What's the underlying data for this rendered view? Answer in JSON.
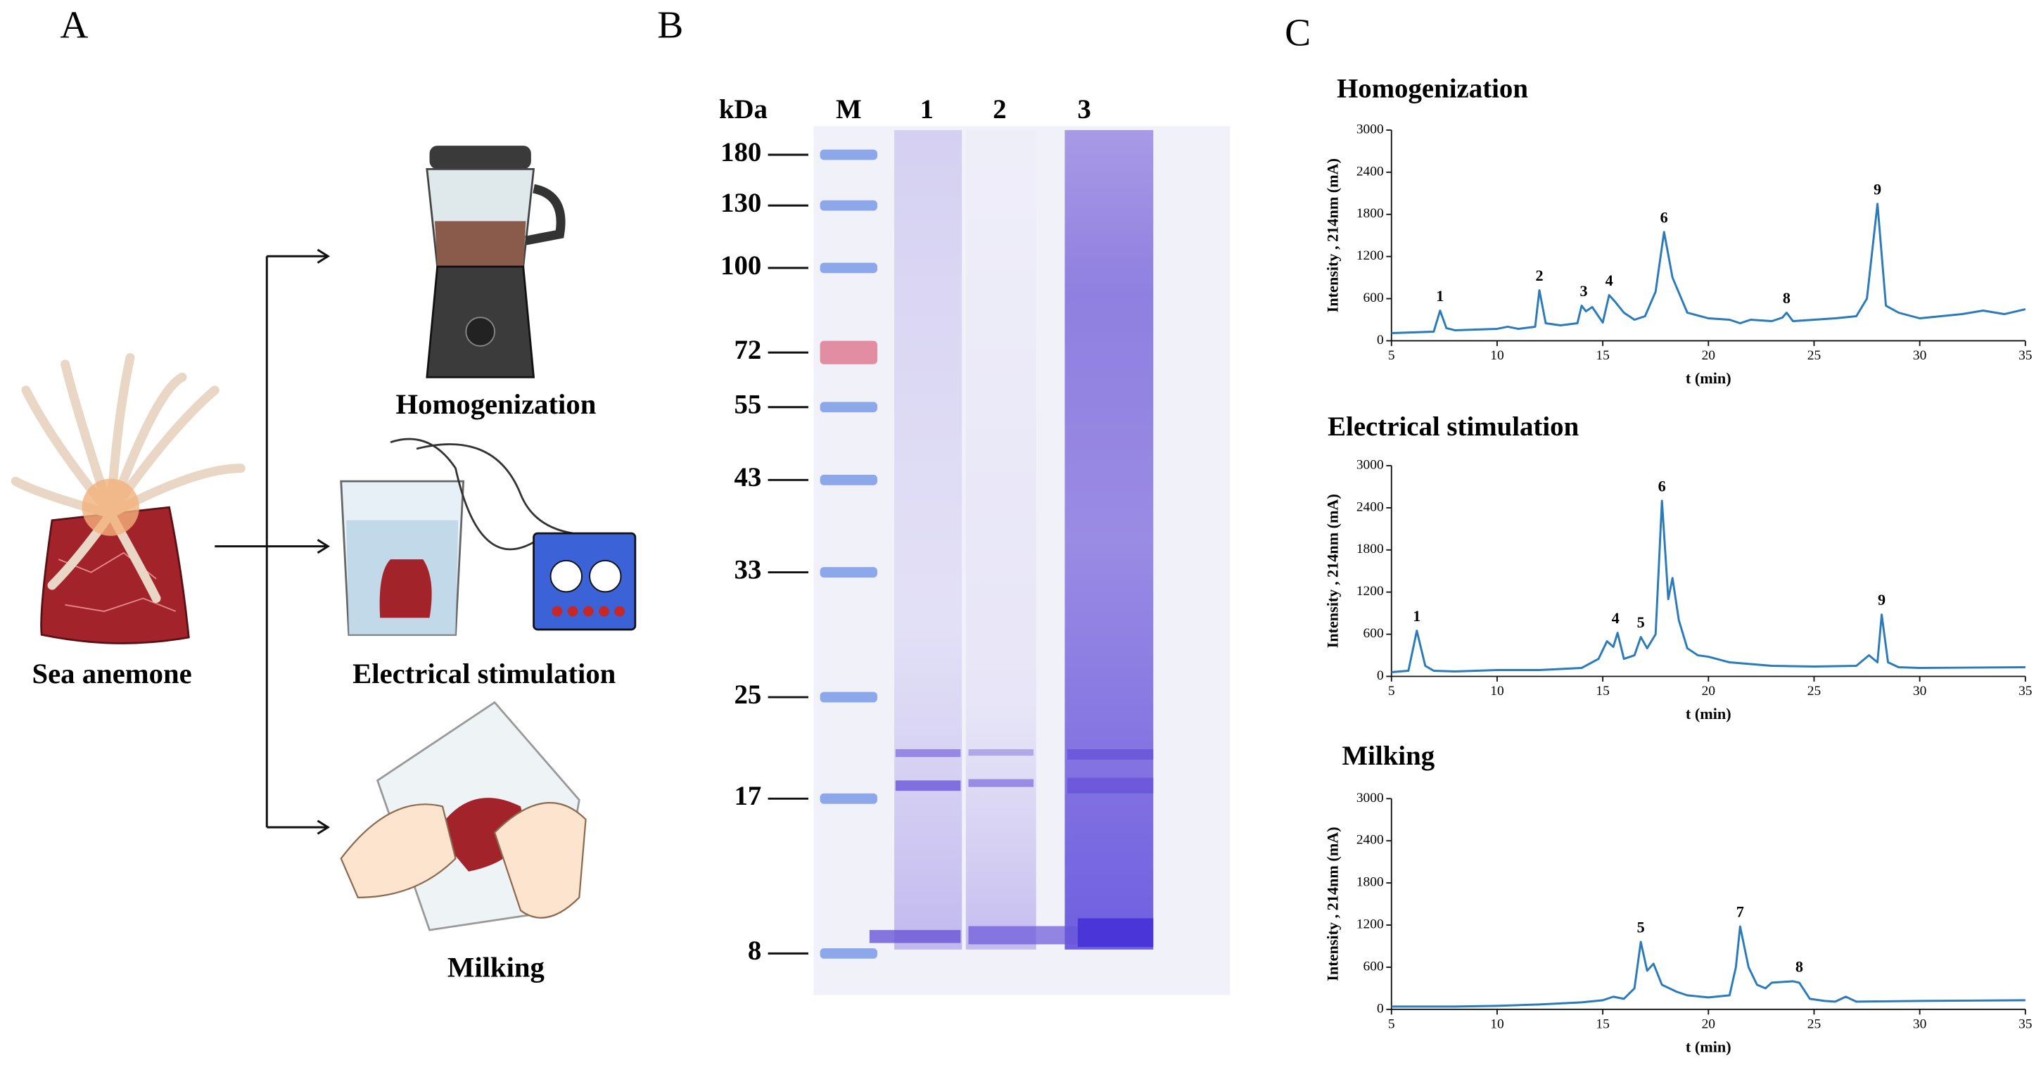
{
  "panels": {
    "A": {
      "label": "A",
      "source": "Sea anemone",
      "methods": [
        "Homogenization",
        "Electrical stimulation",
        "Milking"
      ]
    },
    "B": {
      "label": "B",
      "unit": "kDa",
      "lanes": [
        "M",
        "1",
        "2",
        "3"
      ],
      "markers": [
        180,
        130,
        100,
        72,
        55,
        43,
        33,
        25,
        17,
        8
      ]
    },
    "C": {
      "label": "C"
    }
  },
  "chart_data": [
    {
      "type": "line",
      "title": "Homogenization",
      "xlabel": "t (min)",
      "ylabel": "Intensity , 214nm (mA)",
      "x": [
        5,
        6,
        7,
        7.3,
        7.6,
        8,
        9,
        10,
        10.5,
        11,
        11.8,
        12,
        12.3,
        13,
        13.8,
        14,
        14.2,
        14.5,
        15,
        15.3,
        15.6,
        16,
        16.5,
        17,
        17.5,
        17.9,
        18.3,
        19,
        20,
        21,
        21.5,
        22,
        23,
        23.5,
        23.7,
        24,
        25,
        26,
        27,
        27.5,
        28,
        28.4,
        29,
        30,
        31,
        32,
        33,
        34,
        35
      ],
      "series": [
        {
          "color": "#2b7bba",
          "values": [
            110,
            120,
            130,
            430,
            180,
            150,
            160,
            170,
            200,
            170,
            200,
            720,
            250,
            220,
            250,
            500,
            420,
            480,
            260,
            650,
            550,
            400,
            300,
            350,
            700,
            1550,
            900,
            400,
            320,
            300,
            250,
            300,
            280,
            330,
            400,
            280,
            300,
            320,
            350,
            600,
            1950,
            500,
            400,
            320,
            350,
            380,
            430,
            380,
            450
          ]
        }
      ],
      "xlim": [
        5,
        35
      ],
      "xticks": [
        5,
        10,
        15,
        20,
        25,
        30,
        35
      ],
      "ylim": [
        0,
        3000
      ],
      "yticks": [
        0,
        600,
        1200,
        1800,
        2400,
        3000
      ],
      "annotations": [
        {
          "text": "1",
          "x": 7.3,
          "y": 430
        },
        {
          "text": "2",
          "x": 12,
          "y": 720
        },
        {
          "text": "3",
          "x": 14.1,
          "y": 500
        },
        {
          "text": "4",
          "x": 15.3,
          "y": 650
        },
        {
          "text": "6",
          "x": 17.9,
          "y": 1550
        },
        {
          "text": "8",
          "x": 23.7,
          "y": 400
        },
        {
          "text": "9",
          "x": 28,
          "y": 1950
        }
      ]
    },
    {
      "type": "line",
      "title": "Electrical stimulation",
      "xlabel": "t (min)",
      "ylabel": "Intensity , 214nm (mA)",
      "x": [
        5,
        5.8,
        6.2,
        6.6,
        7,
        8,
        10,
        12,
        14,
        14.8,
        15.2,
        15.5,
        15.7,
        16,
        16.5,
        16.8,
        17.1,
        17.5,
        17.8,
        18.1,
        18.3,
        18.6,
        19,
        19.5,
        20,
        21,
        23,
        25,
        27,
        27.6,
        28,
        28.2,
        28.5,
        29,
        30,
        35
      ],
      "series": [
        {
          "color": "#2b7bba",
          "values": [
            60,
            80,
            650,
            150,
            80,
            70,
            90,
            90,
            120,
            250,
            500,
            420,
            620,
            250,
            300,
            560,
            400,
            600,
            2500,
            1100,
            1400,
            800,
            400,
            300,
            280,
            200,
            150,
            140,
            150,
            300,
            200,
            880,
            200,
            130,
            120,
            130
          ]
        }
      ],
      "xlim": [
        5,
        35
      ],
      "xticks": [
        5,
        10,
        15,
        20,
        25,
        30,
        35
      ],
      "ylim": [
        0,
        3000
      ],
      "yticks": [
        0,
        600,
        1200,
        1800,
        2400,
        3000
      ],
      "annotations": [
        {
          "text": "1",
          "x": 6.2,
          "y": 650
        },
        {
          "text": "4",
          "x": 15.6,
          "y": 620
        },
        {
          "text": "5",
          "x": 16.8,
          "y": 560
        },
        {
          "text": "6",
          "x": 17.8,
          "y": 2500
        },
        {
          "text": "9",
          "x": 28.2,
          "y": 880
        }
      ]
    },
    {
      "type": "line",
      "title": "Milking",
      "xlabel": "t (min)",
      "ylabel": "Intensity , 214nm (mA)",
      "x": [
        5,
        8,
        10,
        12,
        14,
        15,
        15.5,
        16,
        16.5,
        16.8,
        17.1,
        17.4,
        17.8,
        18.5,
        19,
        20,
        21,
        21.3,
        21.5,
        21.9,
        22.3,
        22.7,
        23,
        24,
        24.3,
        24.8,
        25.5,
        26,
        26.5,
        27,
        30,
        35
      ],
      "series": [
        {
          "color": "#2b7bba",
          "values": [
            40,
            40,
            50,
            70,
            100,
            130,
            180,
            150,
            300,
            960,
            550,
            650,
            350,
            250,
            200,
            170,
            200,
            600,
            1180,
            600,
            350,
            300,
            380,
            400,
            380,
            150,
            120,
            110,
            180,
            110,
            120,
            130
          ]
        }
      ],
      "xlim": [
        5,
        35
      ],
      "xticks": [
        5,
        10,
        15,
        20,
        25,
        30,
        35
      ],
      "ylim": [
        0,
        3000
      ],
      "yticks": [
        0,
        600,
        1200,
        1800,
        2400,
        3000
      ],
      "annotations": [
        {
          "text": "5",
          "x": 16.8,
          "y": 960
        },
        {
          "text": "7",
          "x": 21.5,
          "y": 1180
        },
        {
          "text": "8",
          "x": 24.3,
          "y": 400
        }
      ]
    }
  ]
}
